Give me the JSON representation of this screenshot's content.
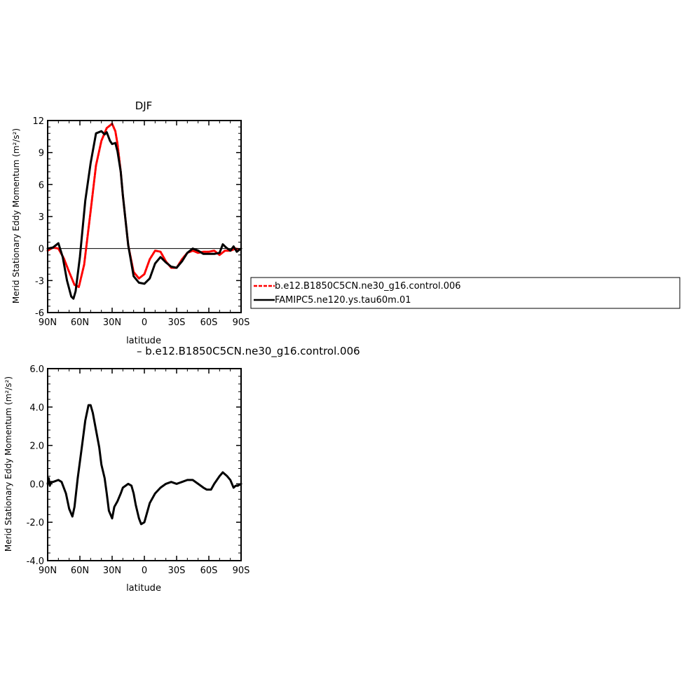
{
  "chart_data": [
    {
      "type": "line",
      "title": "DJF",
      "xlabel": "latitude",
      "ylabel": "Merid Stationary Eddy Momentum  (m²/s²)",
      "xlim": [
        90,
        -90
      ],
      "ylim": [
        -6,
        12
      ],
      "x_ticks": [
        90,
        60,
        30,
        0,
        -30,
        -60,
        -90
      ],
      "x_tick_labels": [
        "90N",
        "60N",
        "30N",
        "0",
        "30S",
        "60S",
        "90S"
      ],
      "y_ticks": [
        -6,
        -3,
        0,
        3,
        6,
        9,
        12
      ],
      "y_tick_labels": [
        "-6",
        "-3",
        "0",
        "3",
        "6",
        "9",
        "12"
      ],
      "legend": {
        "placement": "right"
      },
      "series": [
        {
          "name": "b.e12.B1850C5CN.ne30_g16.control.006",
          "color": "#ff0000",
          "style": "dashed",
          "x": [
            90,
            85,
            80,
            75,
            70,
            65,
            61,
            56,
            50,
            45,
            40,
            35,
            30,
            27,
            25,
            22,
            20,
            15,
            10,
            5,
            0,
            -5,
            -10,
            -15,
            -20,
            -25,
            -30,
            -35,
            -40,
            -45,
            -50,
            -55,
            -60,
            -65,
            -70,
            -75,
            -80,
            -85,
            -90
          ],
          "values": [
            -0.2,
            0.1,
            0.0,
            -0.9,
            -2.2,
            -3.4,
            -3.6,
            -1.5,
            3.5,
            7.8,
            10.1,
            11.3,
            11.7,
            11.0,
            9.8,
            7.2,
            5.0,
            0.3,
            -2.2,
            -2.8,
            -2.4,
            -1.0,
            -0.2,
            -0.3,
            -1.2,
            -1.8,
            -1.8,
            -1.0,
            -0.4,
            -0.2,
            -0.4,
            -0.3,
            -0.3,
            -0.2,
            -0.6,
            -0.2,
            -0.2,
            0.0,
            -0.1
          ]
        },
        {
          "name": "FAMIPC5.ne120.ys.tau60m.01",
          "color": "#000000",
          "style": "solid",
          "x": [
            90,
            85,
            80,
            76,
            72,
            68,
            66,
            64,
            60,
            55,
            50,
            45,
            40,
            37,
            35,
            32,
            30,
            27,
            25,
            22,
            20,
            15,
            10,
            5,
            0,
            -5,
            -10,
            -15,
            -20,
            -25,
            -30,
            -35,
            -40,
            -45,
            -50,
            -55,
            -60,
            -65,
            -70,
            -73,
            -76,
            -80,
            -83,
            -86,
            -90
          ],
          "values": [
            0.0,
            0.1,
            0.5,
            -0.8,
            -3.0,
            -4.5,
            -4.7,
            -4.0,
            -0.8,
            4.5,
            8.0,
            10.8,
            11.0,
            10.7,
            10.9,
            10.1,
            9.8,
            9.9,
            9.1,
            7.2,
            5.0,
            0.3,
            -2.6,
            -3.2,
            -3.3,
            -2.8,
            -1.4,
            -0.8,
            -1.3,
            -1.7,
            -1.8,
            -1.2,
            -0.4,
            0.0,
            -0.2,
            -0.5,
            -0.5,
            -0.5,
            -0.4,
            0.4,
            0.1,
            -0.2,
            0.2,
            -0.3,
            0.0
          ]
        }
      ]
    },
    {
      "type": "line",
      "title": "– b.e12.B1850C5CN.ne30_g16.control.006",
      "xlabel": "latitude",
      "ylabel": "Merid Stationary Eddy Momentum  (m²/s²)",
      "xlim": [
        90,
        -90
      ],
      "ylim": [
        -4,
        6
      ],
      "x_ticks": [
        90,
        60,
        30,
        0,
        -30,
        -60,
        -90
      ],
      "x_tick_labels": [
        "90N",
        "60N",
        "30N",
        "0",
        "30S",
        "60S",
        "90S"
      ],
      "y_ticks": [
        -4,
        -2,
        0,
        2,
        4,
        6
      ],
      "y_tick_labels": [
        "-4.0",
        "-2.0",
        "0.0",
        "2.0",
        "4.0",
        "6.0"
      ],
      "series": [
        {
          "color": "#000000",
          "style": "solid",
          "x": [
            90,
            89,
            88,
            87,
            85,
            80,
            77,
            73,
            70,
            67,
            65,
            62,
            58,
            55,
            52,
            50,
            48,
            45,
            42,
            40,
            37,
            35,
            33,
            30,
            28,
            25,
            22,
            20,
            15,
            12,
            10,
            8,
            5,
            3,
            0,
            -5,
            -10,
            -15,
            -20,
            -25,
            -30,
            -35,
            -40,
            -45,
            -50,
            -55,
            -58,
            -62,
            -65,
            -70,
            -73,
            -77,
            -80,
            -83,
            -85,
            -87,
            -90
          ],
          "values": [
            0.0,
            0.3,
            -0.1,
            0.1,
            0.1,
            0.2,
            0.1,
            -0.5,
            -1.3,
            -1.7,
            -1.2,
            0.3,
            2.0,
            3.3,
            4.1,
            4.1,
            3.7,
            2.8,
            1.9,
            1.0,
            0.3,
            -0.5,
            -1.4,
            -1.8,
            -1.2,
            -0.9,
            -0.5,
            -0.2,
            0.0,
            -0.1,
            -0.5,
            -1.1,
            -1.8,
            -2.1,
            -2.0,
            -1.0,
            -0.5,
            -0.2,
            0.0,
            0.1,
            0.0,
            0.1,
            0.2,
            0.2,
            0.0,
            -0.2,
            -0.3,
            -0.3,
            0.0,
            0.4,
            0.6,
            0.4,
            0.2,
            -0.2,
            -0.1,
            -0.1,
            0.0
          ]
        }
      ]
    }
  ]
}
